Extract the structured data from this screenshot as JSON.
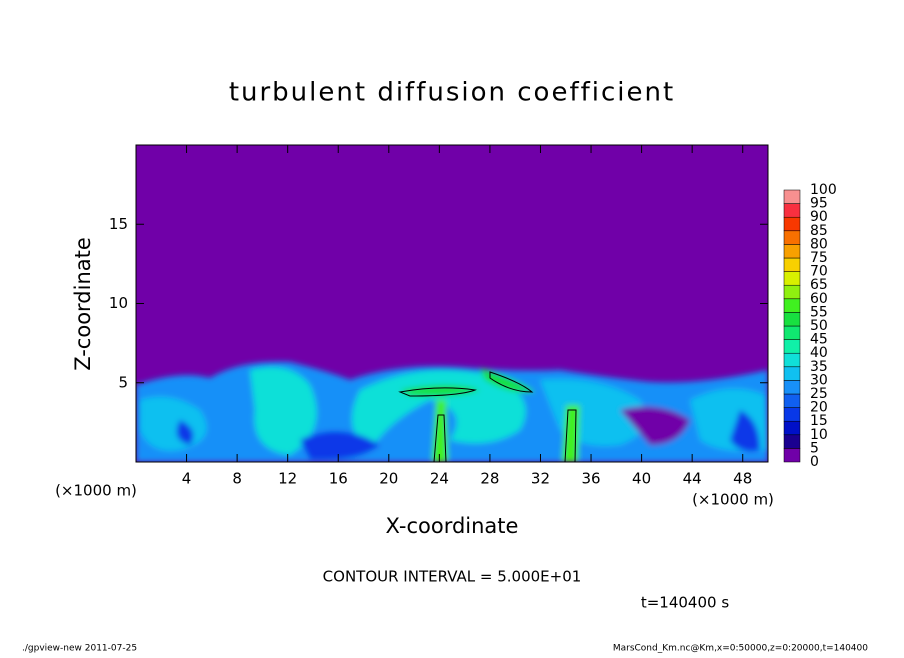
{
  "chart_data": {
    "type": "contour",
    "title": "turbulent diffusion coefficient",
    "xlabel": "X-coordinate",
    "ylabel": "Z-coordinate",
    "xunit": "(×1000 m)",
    "yunit": "(×1000 m)",
    "xlim": [
      0,
      50
    ],
    "xticks": [
      4,
      8,
      12,
      16,
      20,
      24,
      28,
      32,
      36,
      40,
      44,
      48
    ],
    "ylim": [
      0,
      20
    ],
    "yticks": [
      5,
      10,
      15
    ],
    "colorbar": {
      "levels": [
        0,
        5,
        10,
        15,
        20,
        25,
        30,
        35,
        40,
        45,
        50,
        55,
        60,
        65,
        70,
        75,
        80,
        85,
        90,
        95,
        100
      ],
      "colors": [
        "#7000a8",
        "#1a0090",
        "#0010c8",
        "#0838e8",
        "#1060f0",
        "#1890f8",
        "#10c0f0",
        "#10e0d8",
        "#10f0a8",
        "#10e870",
        "#18e040",
        "#40f020",
        "#90f010",
        "#d8f000",
        "#f8d000",
        "#f8a000",
        "#f87000",
        "#f83800",
        "#f83040",
        "#f89090"
      ]
    },
    "contour_note": "CONTOUR INTERVAL = 5.000E+01",
    "time": "t=140400 s",
    "footer_left": "./gpview-new   2011-07-25",
    "footer_right": "MarsCond_Km.nc@Km,x=0:50000,z=0:20000,t=140400"
  }
}
